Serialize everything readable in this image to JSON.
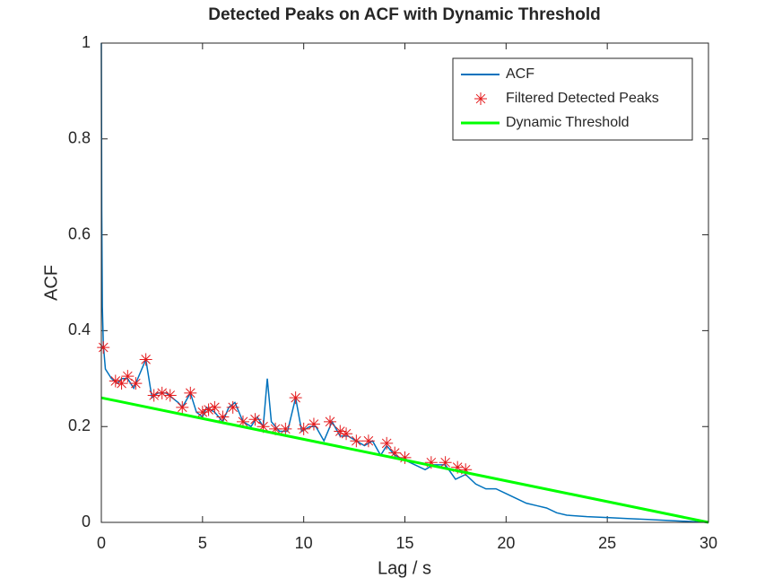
{
  "chart_data": {
    "type": "line",
    "title": "Detected Peaks on ACF with Dynamic Threshold",
    "xlabel": "Lag / s",
    "ylabel": "ACF",
    "xlim": [
      0,
      30
    ],
    "ylim": [
      0,
      1
    ],
    "xticks": [
      0,
      5,
      10,
      15,
      20,
      25,
      30
    ],
    "yticks": [
      0,
      0.2,
      0.4,
      0.6,
      0.8,
      1
    ],
    "grid": false,
    "legend": "upper right",
    "series": [
      {
        "name": "ACF",
        "color": "#0072bd",
        "mode": "line",
        "x": [
          0,
          0.02,
          0.05,
          0.1,
          0.2,
          0.5,
          0.8,
          1.0,
          1.3,
          1.6,
          2.0,
          2.2,
          2.5,
          2.8,
          3.2,
          3.5,
          3.8,
          4.0,
          4.4,
          4.7,
          5.0,
          5.2,
          5.6,
          6.0,
          6.3,
          6.6,
          7.0,
          7.4,
          7.7,
          8.0,
          8.2,
          8.4,
          8.8,
          9.2,
          9.6,
          9.9,
          10.3,
          10.6,
          11.0,
          11.4,
          11.8,
          12.2,
          12.6,
          13.0,
          13.4,
          13.8,
          14.1,
          14.5,
          15.0,
          15.5,
          16.0,
          16.4,
          17.0,
          17.5,
          18.0,
          18.5,
          19.0,
          19.5,
          20.0,
          20.5,
          21.0,
          21.5,
          22.0,
          22.5,
          23.0,
          24.0,
          25.0,
          26.0,
          27.0,
          28.0,
          29.0,
          30.0
        ],
        "values": [
          1.0,
          0.65,
          0.45,
          0.37,
          0.32,
          0.3,
          0.29,
          0.3,
          0.3,
          0.28,
          0.32,
          0.34,
          0.26,
          0.27,
          0.27,
          0.26,
          0.25,
          0.24,
          0.27,
          0.23,
          0.22,
          0.24,
          0.23,
          0.21,
          0.24,
          0.25,
          0.21,
          0.2,
          0.22,
          0.2,
          0.3,
          0.21,
          0.19,
          0.19,
          0.26,
          0.19,
          0.2,
          0.2,
          0.17,
          0.21,
          0.18,
          0.18,
          0.17,
          0.16,
          0.17,
          0.14,
          0.16,
          0.14,
          0.13,
          0.12,
          0.11,
          0.12,
          0.12,
          0.09,
          0.1,
          0.08,
          0.07,
          0.07,
          0.06,
          0.05,
          0.04,
          0.035,
          0.03,
          0.02,
          0.015,
          0.012,
          0.01,
          0.008,
          0.006,
          0.004,
          0.002,
          0.0
        ]
      },
      {
        "name": "Filtered Detected Peaks",
        "color": "#e41a1c",
        "mode": "markers",
        "x": [
          0.1,
          0.7,
          1.0,
          1.3,
          1.7,
          2.2,
          2.6,
          3.0,
          3.4,
          4.0,
          4.4,
          5.0,
          5.3,
          5.6,
          6.0,
          6.5,
          7.0,
          7.6,
          8.0,
          8.6,
          9.1,
          9.6,
          10.0,
          10.5,
          11.3,
          11.8,
          12.1,
          12.6,
          13.2,
          14.1,
          14.5,
          15.0,
          16.3,
          17.0,
          17.6,
          18.0
        ],
        "values": [
          0.365,
          0.295,
          0.29,
          0.305,
          0.29,
          0.34,
          0.265,
          0.27,
          0.265,
          0.24,
          0.27,
          0.23,
          0.235,
          0.24,
          0.22,
          0.24,
          0.21,
          0.215,
          0.2,
          0.195,
          0.195,
          0.26,
          0.195,
          0.205,
          0.21,
          0.19,
          0.185,
          0.17,
          0.17,
          0.165,
          0.145,
          0.135,
          0.125,
          0.125,
          0.115,
          0.11
        ]
      },
      {
        "name": "Dynamic Threshold",
        "color": "#00ff00",
        "mode": "line",
        "x": [
          0,
          30
        ],
        "values": [
          0.26,
          0
        ]
      }
    ]
  }
}
